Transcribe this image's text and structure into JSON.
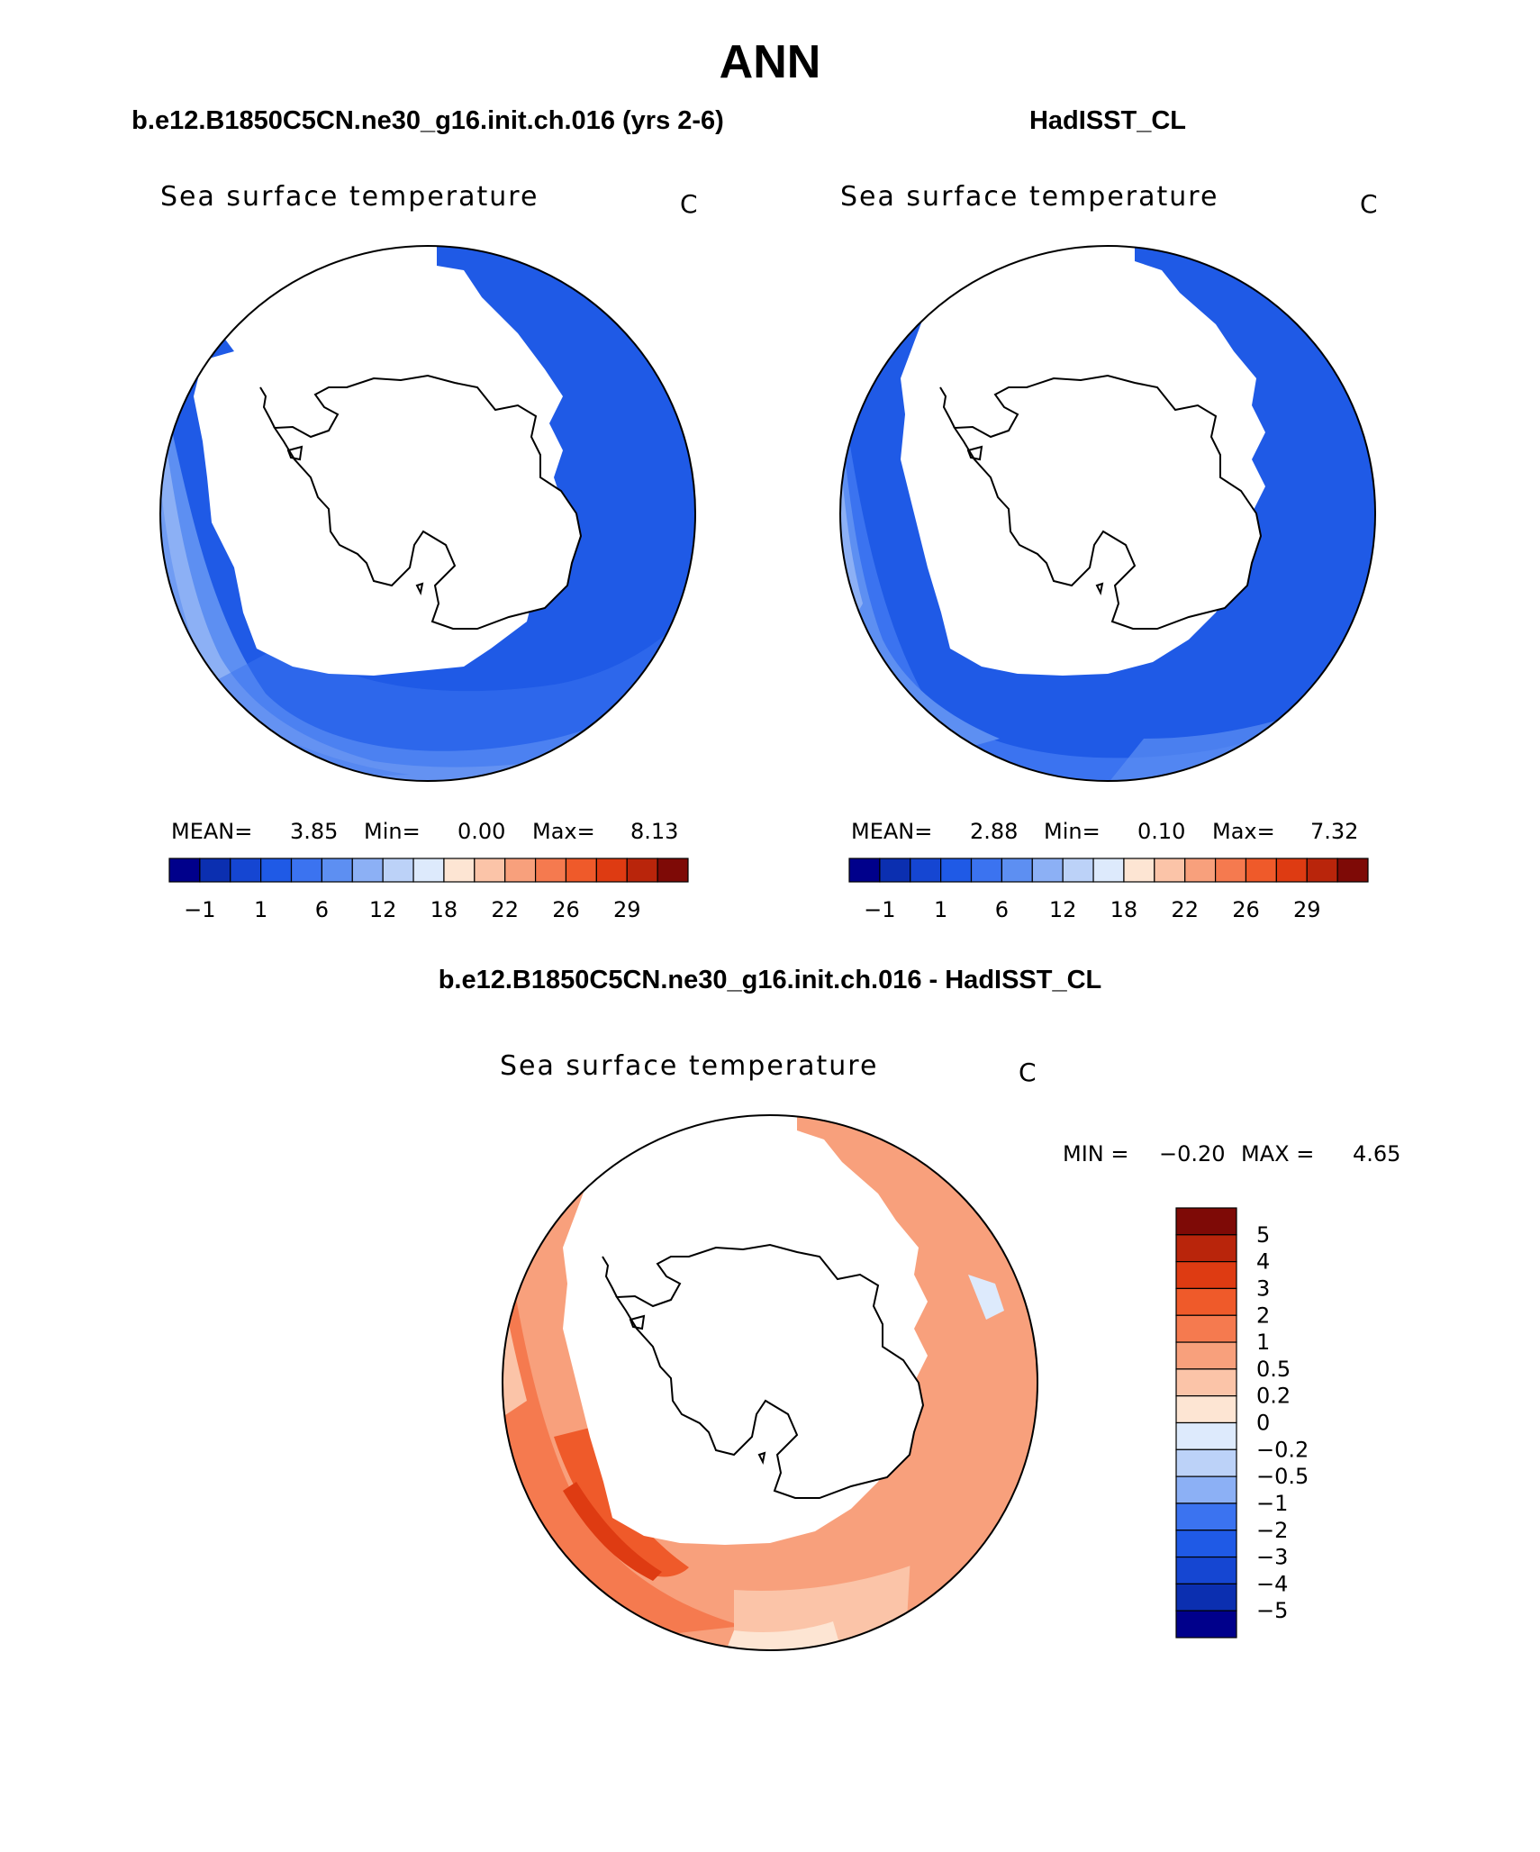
{
  "figure": {
    "title": "ANN",
    "left_case": "b.e12.B1850C5CN.ne30_g16.init.ch.016 (yrs 2-6)",
    "right_case": "HadISST_CL",
    "diff_case": "b.e12.B1850C5CN.ne30_g16.init.ch.016 - HadISST_CL"
  },
  "colors": {
    "abs_scale": [
      "#00008b",
      "#0b2fb0",
      "#1546d2",
      "#1f5ae6",
      "#3b73f0",
      "#5d8ff2",
      "#8cb0f5",
      "#bcd2f8",
      "#ddeafc",
      "#fde5d3",
      "#fbc4a8",
      "#f8a07c",
      "#f57a4f",
      "#ef5a2a",
      "#de3b12",
      "#b9250b",
      "#7e0a06"
    ],
    "diff_scale": [
      "#00008b",
      "#0b2fb0",
      "#1546d2",
      "#1f5ae6",
      "#3b73f0",
      "#8cb0f5",
      "#bcd2f8",
      "#ddeafc",
      "#fde5d3",
      "#fbc4a8",
      "#f8a07c",
      "#f57a4f",
      "#ef5a2a",
      "#de3b12",
      "#b9250b",
      "#7e0a06"
    ],
    "land": "#ffffff",
    "coast": "#000000"
  },
  "chart_data": [
    {
      "type": "heatmap",
      "projection": "south polar stereographic",
      "variable": "Sea surface temperature",
      "units": "C",
      "stats": {
        "mean_label": "MEAN=",
        "mean": "3.85",
        "min_label": "Min=",
        "min": "0.00",
        "max_label": "Max=",
        "max": "8.13"
      },
      "colorbar_ticks": [
        "−1",
        "1",
        "6",
        "12",
        "18",
        "22",
        "26",
        "29"
      ],
      "colorbar_levels": [
        -1,
        0,
        1,
        3,
        6,
        9,
        12,
        15,
        18,
        20,
        22,
        24,
        26,
        28,
        29
      ]
    },
    {
      "type": "heatmap",
      "projection": "south polar stereographic",
      "variable": "Sea surface temperature",
      "units": "C",
      "stats": {
        "mean_label": "MEAN=",
        "mean": "2.88",
        "min_label": "Min=",
        "min": "0.10",
        "max_label": "Max=",
        "max": "7.32"
      },
      "colorbar_ticks": [
        "−1",
        "1",
        "6",
        "12",
        "18",
        "22",
        "26",
        "29"
      ],
      "colorbar_levels": [
        -1,
        0,
        1,
        3,
        6,
        9,
        12,
        15,
        18,
        20,
        22,
        24,
        26,
        28,
        29
      ]
    },
    {
      "type": "heatmap",
      "projection": "south polar stereographic",
      "variable": "Sea surface temperature",
      "units": "C",
      "stats": {
        "min_label": "MIN =",
        "min": "−0.20",
        "max_label": "MAX =",
        "max": "4.65"
      },
      "colorbar_ticks": [
        "5",
        "4",
        "3",
        "2",
        "1",
        "0.5",
        "0.2",
        "0",
        "−0.2",
        "−0.5",
        "−1",
        "−2",
        "−3",
        "−4",
        "−5"
      ]
    }
  ]
}
